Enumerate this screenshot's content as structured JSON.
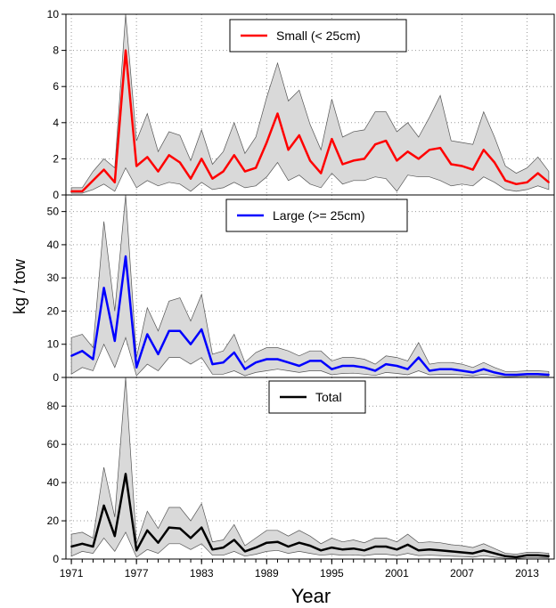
{
  "chart_data": {
    "type": "line",
    "xlabel": "Year",
    "ylabel": "kg / tow",
    "x_ticks": [
      1971,
      1977,
      1983,
      1989,
      1995,
      2001,
      2007,
      2013
    ],
    "xlim": [
      1970.5,
      2015.5
    ],
    "x": [
      1971,
      1972,
      1973,
      1974,
      1975,
      1976,
      1977,
      1978,
      1979,
      1980,
      1981,
      1982,
      1983,
      1984,
      1985,
      1986,
      1987,
      1988,
      1989,
      1990,
      1991,
      1992,
      1993,
      1994,
      1995,
      1996,
      1997,
      1998,
      1999,
      2000,
      2001,
      2002,
      2003,
      2004,
      2005,
      2006,
      2007,
      2008,
      2009,
      2010,
      2011,
      2012,
      2013,
      2014,
      2015
    ],
    "panels": [
      {
        "legend": "Small (< 25cm)",
        "color": "#ff0000",
        "ylim": [
          0,
          10
        ],
        "yticks": [
          0,
          2,
          4,
          6,
          8,
          10
        ],
        "values": [
          0.2,
          0.2,
          0.8,
          1.4,
          0.7,
          8.0,
          1.6,
          2.1,
          1.3,
          2.2,
          1.8,
          0.9,
          2.0,
          0.9,
          1.3,
          2.2,
          1.3,
          1.5,
          2.9,
          4.5,
          2.5,
          3.3,
          1.9,
          1.2,
          3.1,
          1.7,
          1.9,
          2.0,
          2.8,
          3.0,
          1.9,
          2.4,
          2.0,
          2.5,
          2.6,
          1.7,
          1.6,
          1.4,
          2.5,
          1.8,
          0.8,
          0.6,
          0.7,
          1.2,
          0.7
        ],
        "lower": [
          0.1,
          0.1,
          0.3,
          0.6,
          0.2,
          1.5,
          0.4,
          0.8,
          0.5,
          0.7,
          0.6,
          0.2,
          0.7,
          0.3,
          0.4,
          0.7,
          0.4,
          0.5,
          1.0,
          1.8,
          0.8,
          1.1,
          0.6,
          0.4,
          1.2,
          0.6,
          0.8,
          0.8,
          1.0,
          0.9,
          0.2,
          1.1,
          1.0,
          1.0,
          0.8,
          0.5,
          0.6,
          0.5,
          1.0,
          0.7,
          0.3,
          0.2,
          0.3,
          0.5,
          0.3
        ],
        "upper": [
          0.4,
          0.4,
          1.3,
          2.0,
          1.5,
          10.0,
          3.0,
          4.5,
          2.4,
          3.5,
          3.3,
          1.9,
          3.6,
          1.7,
          2.4,
          4.0,
          2.3,
          3.2,
          5.4,
          7.3,
          5.2,
          5.8,
          3.9,
          2.5,
          5.3,
          3.2,
          3.5,
          3.6,
          4.6,
          4.6,
          3.5,
          4.0,
          3.2,
          4.3,
          5.5,
          3.0,
          2.9,
          2.8,
          4.6,
          3.2,
          1.6,
          1.2,
          1.5,
          2.1,
          1.3
        ]
      },
      {
        "legend": "Large (>= 25cm)",
        "color": "#0000ff",
        "ylim": [
          0,
          55
        ],
        "yticks": [
          0,
          10,
          20,
          30,
          40,
          50
        ],
        "values": [
          6.5,
          8.0,
          5.5,
          27.0,
          11.0,
          36.5,
          3.0,
          13.0,
          7.0,
          14.0,
          14.0,
          10.0,
          14.5,
          4.0,
          4.5,
          7.5,
          2.5,
          4.5,
          5.5,
          5.5,
          4.5,
          3.5,
          5.0,
          5.0,
          2.5,
          3.5,
          3.5,
          3.0,
          2.0,
          4.0,
          3.5,
          2.5,
          6.0,
          2.0,
          2.5,
          2.5,
          2.0,
          1.5,
          2.5,
          1.5,
          0.8,
          0.8,
          1.0,
          1.0,
          0.8
        ],
        "lower": [
          1.0,
          3.0,
          2.0,
          10.0,
          3.0,
          12.0,
          0.5,
          4.0,
          2.0,
          6.0,
          6.0,
          4.0,
          6.0,
          1.0,
          1.0,
          2.0,
          0.5,
          1.5,
          2.0,
          2.5,
          2.0,
          1.5,
          2.0,
          2.0,
          0.8,
          1.2,
          1.3,
          1.0,
          0.6,
          1.5,
          1.2,
          0.8,
          2.0,
          0.8,
          0.9,
          0.9,
          0.8,
          0.5,
          1.0,
          0.6,
          0.2,
          0.3,
          0.4,
          0.4,
          0.3
        ],
        "upper": [
          12.0,
          13.0,
          9.0,
          47.0,
          20.0,
          55.0,
          6.0,
          21.0,
          14.0,
          23.0,
          24.0,
          17.0,
          25.0,
          7.0,
          8.0,
          13.0,
          4.5,
          7.5,
          9.0,
          9.0,
          8.0,
          6.5,
          8.0,
          8.0,
          5.0,
          6.0,
          6.0,
          5.5,
          4.0,
          6.5,
          6.0,
          5.0,
          10.5,
          4.0,
          4.5,
          4.5,
          4.0,
          3.0,
          4.5,
          3.0,
          1.8,
          1.8,
          2.0,
          2.0,
          1.8
        ]
      },
      {
        "legend": "Total",
        "color": "#000000",
        "ylim": [
          0,
          95
        ],
        "yticks": [
          0,
          20,
          40,
          60,
          80
        ],
        "values": [
          6.5,
          8.0,
          6.5,
          28.0,
          12.0,
          44.5,
          4.5,
          15.0,
          8.5,
          16.5,
          16.0,
          11.0,
          16.5,
          5.0,
          6.0,
          10.0,
          4.0,
          6.0,
          8.5,
          9.0,
          6.5,
          8.5,
          7.0,
          4.5,
          6.0,
          5.0,
          5.5,
          4.5,
          6.5,
          6.5,
          5.0,
          7.5,
          4.5,
          5.0,
          4.5,
          4.0,
          3.5,
          3.0,
          4.5,
          3.0,
          1.5,
          1.0,
          2.0,
          2.0,
          1.5
        ],
        "lower": [
          1.5,
          4.0,
          3.0,
          11.0,
          4.0,
          14.0,
          1.0,
          5.0,
          3.0,
          8.0,
          8.0,
          5.0,
          8.0,
          2.0,
          2.0,
          4.0,
          1.5,
          2.5,
          4.0,
          4.5,
          3.0,
          4.0,
          3.0,
          2.0,
          2.5,
          2.0,
          2.2,
          1.8,
          2.5,
          2.5,
          1.8,
          3.0,
          1.8,
          2.0,
          1.8,
          1.5,
          1.3,
          1.0,
          1.8,
          1.0,
          0.4,
          0.3,
          0.7,
          0.7,
          0.5
        ],
        "upper": [
          13.0,
          14.0,
          11.0,
          48.0,
          22.0,
          95.0,
          8.0,
          25.0,
          16.0,
          27.0,
          27.0,
          20.0,
          29.0,
          9.0,
          10.0,
          18.0,
          7.0,
          11.0,
          15.0,
          15.0,
          12.0,
          15.0,
          12.0,
          8.0,
          11.0,
          9.0,
          10.0,
          8.5,
          11.0,
          11.0,
          9.0,
          13.0,
          8.5,
          9.0,
          8.5,
          7.5,
          7.0,
          6.0,
          8.0,
          5.5,
          3.0,
          2.5,
          3.5,
          3.5,
          3.0
        ]
      }
    ],
    "band_color": "#d9d9d9",
    "grid": true
  }
}
